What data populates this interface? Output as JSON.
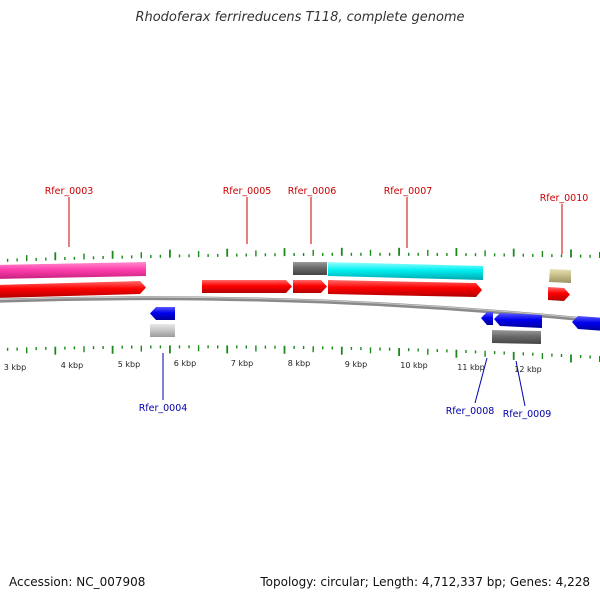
{
  "title": "Rhodoferax ferrireducens T118, complete genome",
  "footer": {
    "accession": "Accession: NC_007908",
    "summary": "Topology: circular; Length: 4,712,337 bp; Genes: 4,228"
  },
  "colors": {
    "forward_gene": "#ff0000",
    "reverse_gene": "#0000ee",
    "tick": "#1a8a1a",
    "backbone": "#888888",
    "forward_label": "#cc0000",
    "reverse_label": "#0000aa",
    "magenta_feature": "#ff3fae",
    "cyan_feature": "#00f0f0",
    "gray_feature": "#6a6a6a",
    "light_gray_feature": "#c8c8c8",
    "khaki_feature": "#c8c08a"
  },
  "scale_labels": [
    "3 kbp",
    "4 kbp",
    "5 kbp",
    "6 kbp",
    "7 kbp",
    "8 kbp",
    "9 kbp",
    "10 kbp",
    "11 kbp",
    "12 kbp"
  ],
  "gene_labels": [
    "Rfer_0003",
    "Rfer_0004",
    "Rfer_0005",
    "Rfer_0006",
    "Rfer_0007",
    "Rfer_0008",
    "Rfer_0009",
    "Rfer_0010"
  ]
}
